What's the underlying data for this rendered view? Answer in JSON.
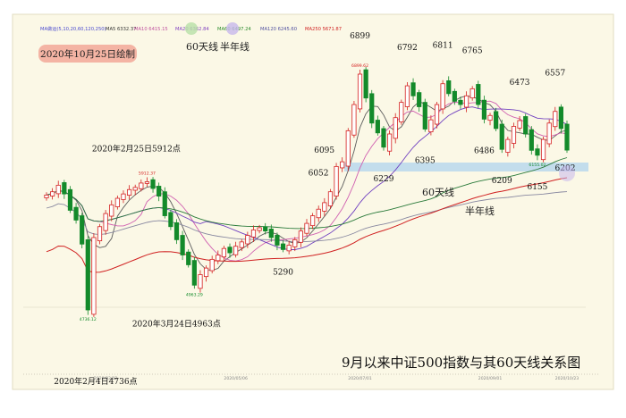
{
  "chart_data": {
    "type": "candlestick",
    "title": "9月以来中证500指数与其60天线关系图",
    "drawn_note": "2020年10月25日绘制",
    "ma_legend": [
      {
        "label": "MA做运(5,10,20,60,120,250)",
        "color": "#4a4ad0"
      },
      {
        "label": "MA5 6332.37",
        "color": "#333333"
      },
      {
        "label": "MA10 6415.15",
        "color": "#c0509f"
      },
      {
        "label": "MA20 6362.84",
        "color": "#8040c0"
      },
      {
        "label": "MA60 6497.24",
        "color": "#2a8a2a"
      },
      {
        "label": "MA120 6245.60",
        "color": "#5050a0"
      },
      {
        "label": "MA250 5671.87",
        "color": "#d02020"
      }
    ],
    "line_labels": {
      "ma60": "60天线",
      "half_year": "半年线",
      "header_ma60": "60天线",
      "header_half": "半年线"
    },
    "x_ticks": [
      "2020/03/02",
      "2020/05/06",
      "2020/07/01",
      "2020/09/01",
      "2020/10/23"
    ],
    "close": [
      5790,
      5820,
      5880,
      5800,
      5650,
      5560,
      5340,
      4736,
      5400,
      5500,
      5620,
      5700,
      5760,
      5800,
      5840,
      5860,
      5900,
      5912,
      5850,
      5780,
      5600,
      5500,
      5380,
      5240,
      5150,
      4963,
      5060,
      5120,
      5200,
      5240,
      5300,
      5260,
      5320,
      5360,
      5420,
      5470,
      5490,
      5460,
      5400,
      5330,
      5290,
      5330,
      5380,
      5460,
      5530,
      5600,
      5660,
      5720,
      5820,
      6052,
      6095,
      6380,
      6620,
      6899,
      6680,
      6450,
      6360,
      6229,
      6350,
      6500,
      6640,
      6792,
      6700,
      6600,
      6395,
      6480,
      6620,
      6811,
      6720,
      6650,
      6620,
      6700,
      6765,
      6620,
      6486,
      6520,
      6400,
      6209,
      6300,
      6420,
      6473,
      6350,
      6200,
      6155,
      6300,
      6450,
      6557,
      6400,
      6202
    ],
    "annotations": [
      {
        "text": "2020年2月25日5912点",
        "kind": "peak"
      },
      {
        "text": "2020年3月24日4963点",
        "kind": "trough"
      },
      {
        "text": "2020年2月4日4736点",
        "kind": "trough"
      },
      {
        "text": "5290",
        "kind": "trough"
      },
      {
        "text": "6052",
        "kind": "level"
      },
      {
        "text": "6095",
        "kind": "level"
      },
      {
        "text": "6899",
        "kind": "peak"
      },
      {
        "text": "6229",
        "kind": "trough"
      },
      {
        "text": "6792",
        "kind": "peak"
      },
      {
        "text": "6811",
        "kind": "peak"
      },
      {
        "text": "6395",
        "kind": "trough"
      },
      {
        "text": "6765",
        "kind": "peak"
      },
      {
        "text": "6486",
        "kind": "trough"
      },
      {
        "text": "6473",
        "kind": "peak"
      },
      {
        "text": "6209",
        "kind": "trough"
      },
      {
        "text": "6557",
        "kind": "peak"
      },
      {
        "text": "6155",
        "kind": "trough"
      },
      {
        "text": "6202",
        "kind": "last"
      }
    ],
    "small_labels": [
      "5912.37",
      "6899.62",
      "4963.29",
      "4736.12",
      "6155.02"
    ]
  }
}
